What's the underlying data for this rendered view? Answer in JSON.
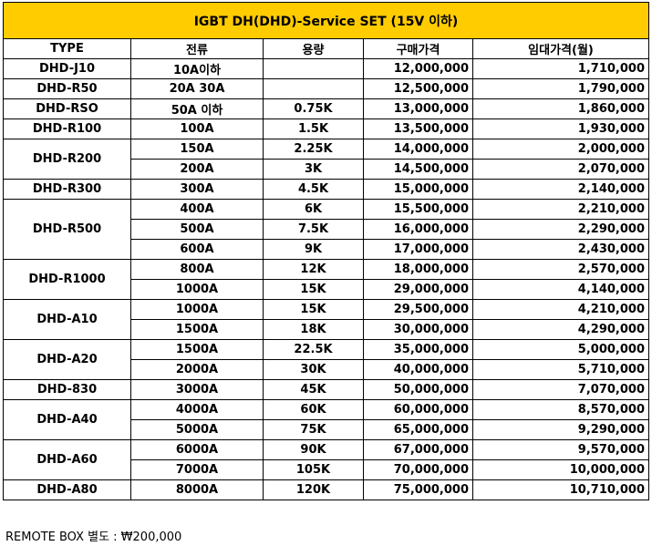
{
  "title": "IGBT DH(DHD)-Service SET (15V 이하)",
  "headers": {
    "type": "TYPE",
    "current": "전류",
    "capacity": "용량",
    "purchase": "구매가격",
    "rental": "임대가격(월)"
  },
  "groups": [
    {
      "type": "DHD-J10",
      "rows": [
        {
          "current": "10A이하",
          "capacity": "",
          "purchase": "12,000,000",
          "rental": "1,710,000"
        }
      ]
    },
    {
      "type": "DHD-R50",
      "rows": [
        {
          "current": "20A 30A",
          "capacity": "",
          "purchase": "12,500,000",
          "rental": "1,790,000"
        }
      ]
    },
    {
      "type": "DHD-RSO",
      "rows": [
        {
          "current": "50A 이하",
          "capacity": "0.75K",
          "purchase": "13,000,000",
          "rental": "1,860,000"
        }
      ]
    },
    {
      "type": "DHD-R100",
      "rows": [
        {
          "current": "100A",
          "capacity": "1.5K",
          "purchase": "13,500,000",
          "rental": "1,930,000"
        }
      ]
    },
    {
      "type": "DHD-R200",
      "rows": [
        {
          "current": "150A",
          "capacity": "2.25K",
          "purchase": "14,000,000",
          "rental": "2,000,000"
        },
        {
          "current": "200A",
          "capacity": "3K",
          "purchase": "14,500,000",
          "rental": "2,070,000"
        }
      ]
    },
    {
      "type": "DHD-R300",
      "rows": [
        {
          "current": "300A",
          "capacity": "4.5K",
          "purchase": "15,000,000",
          "rental": "2,140,000"
        }
      ]
    },
    {
      "type": "DHD-R500",
      "rows": [
        {
          "current": "400A",
          "capacity": "6K",
          "purchase": "15,500,000",
          "rental": "2,210,000"
        },
        {
          "current": "500A",
          "capacity": "7.5K",
          "purchase": "16,000,000",
          "rental": "2,290,000"
        },
        {
          "current": "600A",
          "capacity": "9K",
          "purchase": "17,000,000",
          "rental": "2,430,000"
        }
      ]
    },
    {
      "type": "DHD-R1000",
      "rows": [
        {
          "current": "800A",
          "capacity": "12K",
          "purchase": "18,000,000",
          "rental": "2,570,000"
        },
        {
          "current": "1000A",
          "capacity": "15K",
          "purchase": "29,000,000",
          "rental": "4,140,000"
        }
      ]
    },
    {
      "type": "DHD-A10",
      "rows": [
        {
          "current": "1000A",
          "capacity": "15K",
          "purchase": "29,500,000",
          "rental": "4,210,000"
        },
        {
          "current": "1500A",
          "capacity": "18K",
          "purchase": "30,000,000",
          "rental": "4,290,000"
        }
      ]
    },
    {
      "type": "DHD-A20",
      "rows": [
        {
          "current": "1500A",
          "capacity": "22.5K",
          "purchase": "35,000,000",
          "rental": "5,000,000"
        },
        {
          "current": "2000A",
          "capacity": "30K",
          "purchase": "40,000,000",
          "rental": "5,710,000"
        }
      ]
    },
    {
      "type": "DHD-830",
      "rows": [
        {
          "current": "3000A",
          "capacity": "45K",
          "purchase": "50,000,000",
          "rental": "7,070,000"
        }
      ]
    },
    {
      "type": "DHD-A40",
      "rows": [
        {
          "current": "4000A",
          "capacity": "60K",
          "purchase": "60,000,000",
          "rental": "8,570,000"
        },
        {
          "current": "5000A",
          "capacity": "75K",
          "purchase": "65,000,000",
          "rental": "9,290,000"
        }
      ]
    },
    {
      "type": "DHD-A60",
      "rows": [
        {
          "current": "6000A",
          "capacity": "90K",
          "purchase": "67,000,000",
          "rental": "9,570,000"
        },
        {
          "current": "7000A",
          "capacity": "105K",
          "purchase": "70,000,000",
          "rental": "10,000,000"
        }
      ]
    },
    {
      "type": "DHD-A80",
      "rows": [
        {
          "current": "8000A",
          "capacity": "120K",
          "purchase": "75,000,000",
          "rental": "10,710,000"
        }
      ]
    }
  ],
  "footer": "REMOTE BOX 별도 : ₩200,000",
  "colors": {
    "title_bg": "#ffcc00",
    "border": "#000000"
  }
}
